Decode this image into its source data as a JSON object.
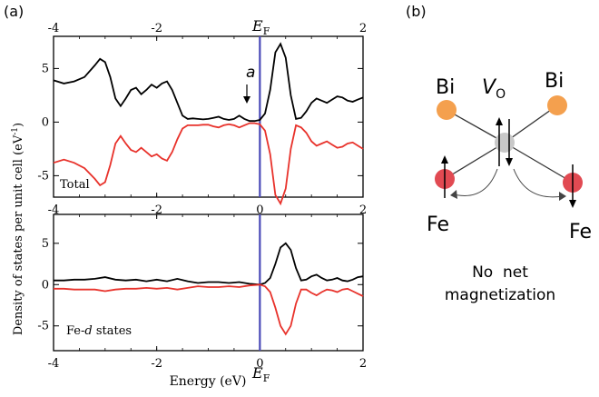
{
  "panel_a_label": "(a)",
  "panel_b_label": "(b)",
  "chart_data": [
    {
      "type": "line",
      "panel": "Total",
      "annotation": "a",
      "fermi_label_main": "E",
      "fermi_label_sub": "F",
      "fermi_energy": 0.0,
      "fermi_line_color": "#4a4ab8",
      "xlim": [
        -4,
        2
      ],
      "ylim": [
        -7,
        8
      ],
      "x_ticks": [
        "-4",
        "-2",
        "0",
        "2"
      ],
      "x_ticks_top": [
        "-4",
        "-2",
        "2"
      ],
      "y_ticks": [
        "5",
        "0",
        "-5"
      ],
      "series": [
        {
          "color": "#000000",
          "x": [
            -4,
            -3.8,
            -3.6,
            -3.4,
            -3.2,
            -3.1,
            -3.0,
            -2.9,
            -2.8,
            -2.7,
            -2.6,
            -2.5,
            -2.4,
            -2.3,
            -2.2,
            -2.1,
            -2.0,
            -1.9,
            -1.8,
            -1.7,
            -1.6,
            -1.5,
            -1.4,
            -1.3,
            -1.2,
            -1.1,
            -1.0,
            -0.9,
            -0.8,
            -0.7,
            -0.6,
            -0.5,
            -0.4,
            -0.3,
            -0.2,
            -0.1,
            0.0,
            0.1,
            0.2,
            0.3,
            0.4,
            0.5,
            0.6,
            0.7,
            0.8,
            0.9,
            1.0,
            1.1,
            1.2,
            1.3,
            1.4,
            1.5,
            1.6,
            1.7,
            1.8,
            1.9,
            2.0
          ],
          "y": [
            3.9,
            3.6,
            3.8,
            4.2,
            5.3,
            5.9,
            5.6,
            4.2,
            2.2,
            1.5,
            2.2,
            3.0,
            3.2,
            2.6,
            3.0,
            3.5,
            3.2,
            3.6,
            3.8,
            3.0,
            1.8,
            0.6,
            0.3,
            0.35,
            0.3,
            0.25,
            0.3,
            0.4,
            0.5,
            0.3,
            0.2,
            0.3,
            0.6,
            0.3,
            0.1,
            0.1,
            0.2,
            0.8,
            3.0,
            6.5,
            7.3,
            6.0,
            2.5,
            0.3,
            0.4,
            1.0,
            1.8,
            2.2,
            2.0,
            1.8,
            2.1,
            2.4,
            2.3,
            2.0,
            1.9,
            2.1,
            2.3
          ]
        },
        {
          "color": "#e8322b",
          "x": [
            -4,
            -3.8,
            -3.6,
            -3.4,
            -3.2,
            -3.1,
            -3.0,
            -2.9,
            -2.8,
            -2.7,
            -2.6,
            -2.5,
            -2.4,
            -2.3,
            -2.2,
            -2.1,
            -2.0,
            -1.9,
            -1.8,
            -1.7,
            -1.6,
            -1.5,
            -1.4,
            -1.3,
            -1.2,
            -1.1,
            -1.0,
            -0.9,
            -0.8,
            -0.7,
            -0.6,
            -0.5,
            -0.4,
            -0.3,
            -0.2,
            -0.1,
            0.0,
            0.1,
            0.2,
            0.3,
            0.4,
            0.5,
            0.6,
            0.7,
            0.8,
            0.9,
            1.0,
            1.1,
            1.2,
            1.3,
            1.4,
            1.5,
            1.6,
            1.7,
            1.8,
            1.9,
            2.0
          ],
          "y": [
            -3.8,
            -3.5,
            -3.8,
            -4.3,
            -5.3,
            -5.9,
            -5.6,
            -4.0,
            -2.0,
            -1.3,
            -2.0,
            -2.6,
            -2.8,
            -2.4,
            -2.8,
            -3.2,
            -3.0,
            -3.4,
            -3.6,
            -2.8,
            -1.6,
            -0.6,
            -0.3,
            -0.3,
            -0.3,
            -0.25,
            -0.25,
            -0.4,
            -0.5,
            -0.3,
            -0.2,
            -0.3,
            -0.5,
            -0.3,
            -0.1,
            -0.1,
            -0.2,
            -0.8,
            -3.0,
            -6.8,
            -7.6,
            -6.2,
            -2.5,
            -0.3,
            -0.5,
            -1.0,
            -1.8,
            -2.2,
            -2.0,
            -1.8,
            -2.1,
            -2.4,
            -2.3,
            -2.0,
            -1.9,
            -2.2,
            -2.5
          ]
        }
      ]
    },
    {
      "type": "line",
      "panel": "Fe-d states",
      "panel_label_main": "Fe-",
      "panel_label_italic": "d",
      "panel_label_tail": " states",
      "fermi_label_main": "E",
      "fermi_label_sub": "F",
      "fermi_energy": 0.0,
      "xlim": [
        -4,
        2
      ],
      "ylim": [
        -8,
        8.5
      ],
      "x_ticks": [
        "-4",
        "-2",
        "0",
        "2"
      ],
      "y_ticks": [
        "5",
        "0",
        "-5"
      ],
      "xlabel": "Energy (eV)",
      "ylabel_shared": "Density of states per unit cell (eV",
      "ylabel_sup": "-1",
      "ylabel_tail": ")",
      "series": [
        {
          "color": "#000000",
          "x": [
            -4,
            -3.8,
            -3.6,
            -3.4,
            -3.2,
            -3.0,
            -2.8,
            -2.6,
            -2.4,
            -2.2,
            -2.0,
            -1.8,
            -1.6,
            -1.4,
            -1.2,
            -1.0,
            -0.8,
            -0.6,
            -0.4,
            -0.2,
            0.0,
            0.1,
            0.2,
            0.3,
            0.4,
            0.5,
            0.6,
            0.7,
            0.8,
            0.9,
            1.0,
            1.1,
            1.2,
            1.3,
            1.4,
            1.5,
            1.6,
            1.7,
            1.8,
            1.9,
            2.0
          ],
          "y": [
            0.5,
            0.5,
            0.6,
            0.6,
            0.7,
            0.9,
            0.6,
            0.5,
            0.6,
            0.4,
            0.6,
            0.4,
            0.7,
            0.4,
            0.2,
            0.3,
            0.3,
            0.2,
            0.3,
            0.1,
            0.0,
            0.2,
            0.8,
            2.5,
            4.5,
            5.0,
            4.2,
            2.0,
            0.5,
            0.6,
            1.0,
            1.2,
            0.8,
            0.5,
            0.6,
            0.8,
            0.5,
            0.4,
            0.6,
            0.9,
            1.0
          ]
        },
        {
          "color": "#e8322b",
          "x": [
            -4,
            -3.8,
            -3.6,
            -3.4,
            -3.2,
            -3.0,
            -2.8,
            -2.6,
            -2.4,
            -2.2,
            -2.0,
            -1.8,
            -1.6,
            -1.4,
            -1.2,
            -1.0,
            -0.8,
            -0.6,
            -0.4,
            -0.2,
            0.0,
            0.1,
            0.2,
            0.3,
            0.4,
            0.5,
            0.6,
            0.7,
            0.8,
            0.9,
            1.0,
            1.1,
            1.2,
            1.3,
            1.4,
            1.5,
            1.6,
            1.7,
            1.8,
            1.9,
            2.0
          ],
          "y": [
            -0.5,
            -0.5,
            -0.6,
            -0.6,
            -0.6,
            -0.8,
            -0.6,
            -0.5,
            -0.5,
            -0.4,
            -0.5,
            -0.4,
            -0.6,
            -0.4,
            -0.2,
            -0.3,
            -0.3,
            -0.2,
            -0.3,
            -0.1,
            0.0,
            -0.2,
            -0.9,
            -2.8,
            -5.0,
            -6.0,
            -5.0,
            -2.3,
            -0.6,
            -0.6,
            -1.0,
            -1.3,
            -0.9,
            -0.6,
            -0.7,
            -0.9,
            -0.6,
            -0.5,
            -0.8,
            -1.1,
            -1.4
          ]
        }
      ]
    }
  ],
  "diagram": {
    "bi_left_label": "Bi",
    "bi_right_label": "Bi",
    "vacancy_label_main": "V",
    "vacancy_label_sub": "O",
    "fe_left_label": "Fe",
    "fe_right_label": "Fe",
    "caption_line1": "No  net",
    "caption_line2": "magnetization",
    "bi_color": "#f4a04e",
    "fe_color": "#e14a52",
    "vacancy_color": "#c8c8c8"
  }
}
